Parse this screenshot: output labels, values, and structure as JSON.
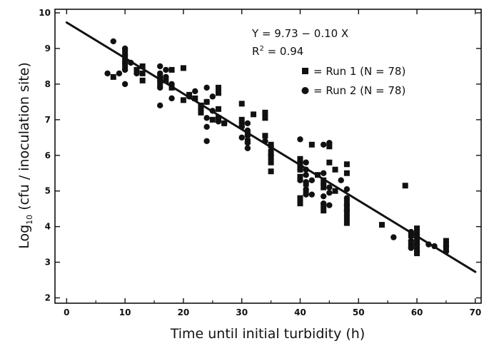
{
  "chart_data": {
    "type": "scatter",
    "title": "",
    "xlabel": "Time until initial turbidity (h)",
    "ylabel_prefix": "Log",
    "ylabel_sub": "10",
    "ylabel_rest": " (cfu / inoculation site)",
    "xlim": [
      -2,
      71
    ],
    "ylim": [
      1.85,
      10.1
    ],
    "xticks": [
      0,
      10,
      20,
      30,
      40,
      50,
      60,
      70
    ],
    "yticks": [
      2,
      3,
      4,
      5,
      6,
      7,
      8,
      9,
      10
    ],
    "grid": false,
    "equation": "Y = 9.73 − 0.10 X",
    "r2_prefix": "R",
    "r2_sup": "2",
    "r2_rest": " = 0.94",
    "legend_placement": "top-right",
    "regression": {
      "intercept": 9.73,
      "slope": -0.1,
      "x_range": [
        0,
        70
      ]
    },
    "series": [
      {
        "name": "= Run 1 (N = 78)",
        "marker": "square",
        "points": [
          [
            8,
            8.2
          ],
          [
            10,
            8.9
          ],
          [
            10,
            8.7
          ],
          [
            10,
            8.5
          ],
          [
            12,
            8.4
          ],
          [
            13,
            8.5
          ],
          [
            13,
            8.3
          ],
          [
            13,
            8.1
          ],
          [
            16,
            8.2
          ],
          [
            16,
            8.0
          ],
          [
            17,
            8.1
          ],
          [
            18,
            8.4
          ],
          [
            18,
            7.9
          ],
          [
            20,
            8.45
          ],
          [
            20,
            7.55
          ],
          [
            21,
            7.7
          ],
          [
            22,
            7.6
          ],
          [
            23,
            7.4
          ],
          [
            23,
            7.2
          ],
          [
            24,
            7.5
          ],
          [
            25,
            7.0
          ],
          [
            26,
            7.9
          ],
          [
            26,
            7.75
          ],
          [
            26,
            7.3
          ],
          [
            26,
            7.05
          ],
          [
            27,
            6.9
          ],
          [
            30,
            7.45
          ],
          [
            30,
            7.0
          ],
          [
            30,
            6.85
          ],
          [
            31,
            6.6
          ],
          [
            31,
            6.4
          ],
          [
            32,
            7.15
          ],
          [
            34,
            7.2
          ],
          [
            34,
            7.05
          ],
          [
            34,
            6.55
          ],
          [
            35,
            6.3
          ],
          [
            35,
            6.1
          ],
          [
            35,
            5.95
          ],
          [
            35,
            5.8
          ],
          [
            35,
            5.55
          ],
          [
            40,
            5.9
          ],
          [
            40,
            5.75
          ],
          [
            40,
            5.6
          ],
          [
            40,
            5.4
          ],
          [
            40,
            4.8
          ],
          [
            40,
            4.65
          ],
          [
            41,
            5.2
          ],
          [
            41,
            4.95
          ],
          [
            42,
            6.3
          ],
          [
            43,
            5.45
          ],
          [
            44,
            5.3
          ],
          [
            44,
            5.1
          ],
          [
            44,
            4.6
          ],
          [
            44,
            4.45
          ],
          [
            45,
            6.25
          ],
          [
            45,
            5.8
          ],
          [
            46,
            5.6
          ],
          [
            46,
            5.0
          ],
          [
            48,
            5.75
          ],
          [
            48,
            5.5
          ],
          [
            48,
            4.7
          ],
          [
            48,
            4.55
          ],
          [
            48,
            4.4
          ],
          [
            48,
            4.25
          ],
          [
            48,
            4.1
          ],
          [
            54,
            4.05
          ],
          [
            58,
            5.15
          ],
          [
            59,
            3.75
          ],
          [
            59,
            3.55
          ],
          [
            59,
            3.45
          ],
          [
            60,
            3.95
          ],
          [
            60,
            3.8
          ],
          [
            60,
            3.6
          ],
          [
            60,
            3.4
          ],
          [
            60,
            3.25
          ],
          [
            65,
            3.6
          ],
          [
            65,
            3.5
          ],
          [
            65,
            3.35
          ]
        ]
      },
      {
        "name": "= Run 2 (N = 78)",
        "marker": "circle",
        "points": [
          [
            7,
            8.3
          ],
          [
            8,
            9.2
          ],
          [
            9,
            8.3
          ],
          [
            10,
            9.0
          ],
          [
            10,
            8.8
          ],
          [
            10,
            8.6
          ],
          [
            10,
            8.4
          ],
          [
            10,
            8.0
          ],
          [
            11,
            8.6
          ],
          [
            12,
            8.3
          ],
          [
            16,
            8.5
          ],
          [
            16,
            8.3
          ],
          [
            16,
            8.1
          ],
          [
            16,
            7.9
          ],
          [
            16,
            7.4
          ],
          [
            17,
            8.4
          ],
          [
            17,
            8.2
          ],
          [
            18,
            8.0
          ],
          [
            18,
            7.6
          ],
          [
            21,
            7.65
          ],
          [
            22,
            7.8
          ],
          [
            23,
            7.3
          ],
          [
            24,
            7.9
          ],
          [
            24,
            7.5
          ],
          [
            24,
            7.05
          ],
          [
            24,
            6.8
          ],
          [
            24,
            6.4
          ],
          [
            25,
            7.65
          ],
          [
            25,
            7.25
          ],
          [
            26,
            6.95
          ],
          [
            27,
            6.9
          ],
          [
            30,
            6.8
          ],
          [
            30,
            6.5
          ],
          [
            31,
            6.9
          ],
          [
            31,
            6.7
          ],
          [
            31,
            6.55
          ],
          [
            31,
            6.35
          ],
          [
            31,
            6.2
          ],
          [
            34,
            6.4
          ],
          [
            35,
            6.25
          ],
          [
            35,
            6.0
          ],
          [
            40,
            6.45
          ],
          [
            40,
            5.85
          ],
          [
            40,
            5.6
          ],
          [
            40,
            5.3
          ],
          [
            41,
            5.8
          ],
          [
            41,
            5.6
          ],
          [
            41,
            5.45
          ],
          [
            41,
            5.25
          ],
          [
            41,
            5.05
          ],
          [
            41,
            4.9
          ],
          [
            42,
            5.3
          ],
          [
            42,
            4.9
          ],
          [
            44,
            6.3
          ],
          [
            44,
            5.5
          ],
          [
            44,
            5.2
          ],
          [
            44,
            4.85
          ],
          [
            44,
            4.65
          ],
          [
            45,
            6.35
          ],
          [
            45,
            5.1
          ],
          [
            45,
            4.95
          ],
          [
            45,
            4.6
          ],
          [
            47,
            5.3
          ],
          [
            48,
            5.05
          ],
          [
            48,
            4.8
          ],
          [
            48,
            4.6
          ],
          [
            48,
            4.45
          ],
          [
            56,
            3.7
          ],
          [
            59,
            3.85
          ],
          [
            59,
            3.6
          ],
          [
            59,
            3.4
          ],
          [
            60,
            3.7
          ],
          [
            60,
            3.5
          ],
          [
            60,
            3.3
          ],
          [
            62,
            3.5
          ],
          [
            63,
            3.45
          ],
          [
            65,
            3.45
          ],
          [
            65,
            3.3
          ]
        ]
      }
    ]
  }
}
